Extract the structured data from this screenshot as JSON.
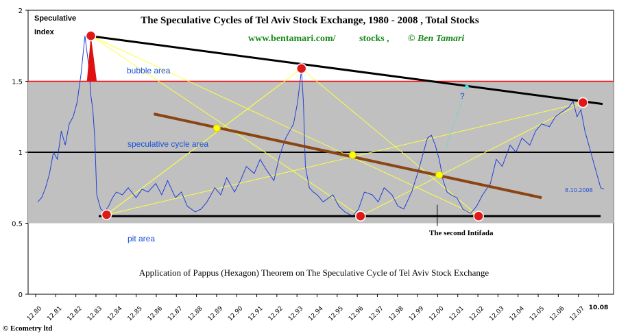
{
  "chart_data": {
    "type": "line",
    "title": "The Speculative Cycles of Tel Aviv Stock Exchange, 1980 - 2008 , Total Stocks",
    "subtitle_site": "www.bentamari.com/",
    "subtitle_stocks": "stocks ,",
    "subtitle_author": "© Ben Tamari",
    "ylabel_line1": "Speculative",
    "ylabel_line2": "Index",
    "caption": "Application of Pappus (Hexagon) Theorem on The Speculative Cycle of Tel Aviv Stock Exchange",
    "ylim": [
      0,
      2
    ],
    "yticks": [
      "0",
      "0.5",
      "1",
      "1.5",
      "2"
    ],
    "xticks": [
      "12.80",
      "12.81",
      "12.82",
      "12.83",
      "12.84",
      "12.85",
      "12.86",
      "12.87",
      "12.88",
      "12.89",
      "12.90",
      "12.91",
      "12.92",
      "12.93",
      "12.94",
      "12.95",
      "12.96",
      "12.97",
      "12.98",
      "12.99",
      "12.00",
      "12.01",
      "12.02",
      "12.03",
      "12.04",
      "12.05",
      "12.06",
      "12.07",
      "10.08"
    ],
    "zones": {
      "bubble_label": "bubble area",
      "speculative_label": "speculative cycle area",
      "pit_label": "pit area",
      "band": [
        0.5,
        1.5
      ],
      "band_color": "#c0c0c0",
      "bubble_line_color": "#ff0000"
    },
    "annotations": {
      "intifada": "The second Intifada",
      "last_date": "8.10.2008",
      "question": "?"
    },
    "series": [
      {
        "color": "#1f3fd6",
        "x": [
          1980.0,
          1980.2,
          1980.4,
          1980.6,
          1980.8,
          1981.0,
          1981.2,
          1981.4,
          1981.6,
          1981.8,
          1982.0,
          1982.2,
          1982.4,
          1982.6,
          1982.7,
          1982.8,
          1982.9,
          1983.0,
          1983.2,
          1983.4,
          1983.6,
          1983.8,
          1984.0,
          1984.3,
          1984.6,
          1985.0,
          1985.3,
          1985.6,
          1986.0,
          1986.3,
          1986.6,
          1987.0,
          1987.3,
          1987.6,
          1988.0,
          1988.3,
          1988.6,
          1989.0,
          1989.3,
          1989.6,
          1990.0,
          1990.3,
          1990.6,
          1991.0,
          1991.3,
          1991.6,
          1992.0,
          1992.3,
          1992.6,
          1993.0,
          1993.2,
          1993.4,
          1993.5,
          1993.6,
          1993.8,
          1994.0,
          1994.2,
          1994.5,
          1994.8,
          1995.0,
          1995.3,
          1995.6,
          1996.0,
          1996.3,
          1996.6,
          1997.0,
          1997.3,
          1997.6,
          1998.0,
          1998.3,
          1998.6,
          1999.0,
          1999.3,
          1999.6,
          1999.8,
          2000.0,
          2000.2,
          2000.4,
          2000.6,
          2000.8,
          2001.0,
          2001.3,
          2001.6,
          2002.0,
          2002.3,
          2002.6,
          2003.0,
          2003.3,
          2003.6,
          2004.0,
          2004.3,
          2004.6,
          2005.0,
          2005.3,
          2005.6,
          2006.0,
          2006.3,
          2006.6,
          2007.0,
          2007.2,
          2007.4,
          2007.6,
          2007.8,
          2008.0,
          2008.2,
          2008.4,
          2008.6,
          2008.77
        ],
        "y": [
          0.65,
          0.68,
          0.75,
          0.85,
          1.0,
          0.95,
          1.15,
          1.05,
          1.2,
          1.25,
          1.35,
          1.55,
          1.82,
          1.6,
          1.4,
          1.3,
          1.1,
          0.7,
          0.6,
          0.58,
          0.62,
          0.68,
          0.72,
          0.7,
          0.75,
          0.68,
          0.74,
          0.72,
          0.78,
          0.7,
          0.8,
          0.68,
          0.72,
          0.62,
          0.58,
          0.6,
          0.65,
          0.75,
          0.7,
          0.82,
          0.72,
          0.8,
          0.9,
          0.85,
          0.95,
          0.88,
          0.8,
          0.98,
          1.1,
          1.2,
          1.35,
          1.58,
          1.35,
          0.9,
          0.75,
          0.72,
          0.7,
          0.65,
          0.68,
          0.7,
          0.62,
          0.58,
          0.55,
          0.6,
          0.72,
          0.7,
          0.65,
          0.75,
          0.7,
          0.62,
          0.6,
          0.72,
          0.85,
          1.0,
          1.1,
          1.12,
          1.05,
          0.95,
          0.8,
          0.72,
          0.7,
          0.68,
          0.6,
          0.57,
          0.62,
          0.7,
          0.78,
          0.95,
          0.9,
          1.05,
          1.0,
          1.1,
          1.05,
          1.15,
          1.2,
          1.18,
          1.25,
          1.28,
          1.32,
          1.36,
          1.25,
          1.3,
          1.15,
          1.05,
          0.95,
          0.85,
          0.75,
          0.74
        ]
      }
    ],
    "black_trend": {
      "x": [
        1982.6,
        2008.7
      ],
      "y": [
        1.82,
        1.34
      ]
    },
    "brown_trend": {
      "x": [
        1985.9,
        2005.6
      ],
      "y": [
        1.27,
        0.68
      ]
    },
    "pit_line": {
      "x": [
        1983.1,
        2008.6
      ],
      "y": [
        0.55,
        0.55
      ]
    },
    "peaks": [
      {
        "x": 1982.7,
        "y": 1.82
      },
      {
        "x": 1993.4,
        "y": 1.59
      },
      {
        "x": 2007.7,
        "y": 1.35
      }
    ],
    "troughs": [
      {
        "x": 1983.5,
        "y": 0.56
      },
      {
        "x": 1996.4,
        "y": 0.55
      },
      {
        "x": 2002.4,
        "y": 0.55
      }
    ],
    "pappus_points": [
      {
        "x": 1989.1,
        "y": 1.17
      },
      {
        "x": 1996.0,
        "y": 0.98
      },
      {
        "x": 2000.4,
        "y": 0.84
      }
    ],
    "projection_point": {
      "x": 2001.8,
      "y": 1.46
    },
    "intifada_x": 2000.3
  }
}
